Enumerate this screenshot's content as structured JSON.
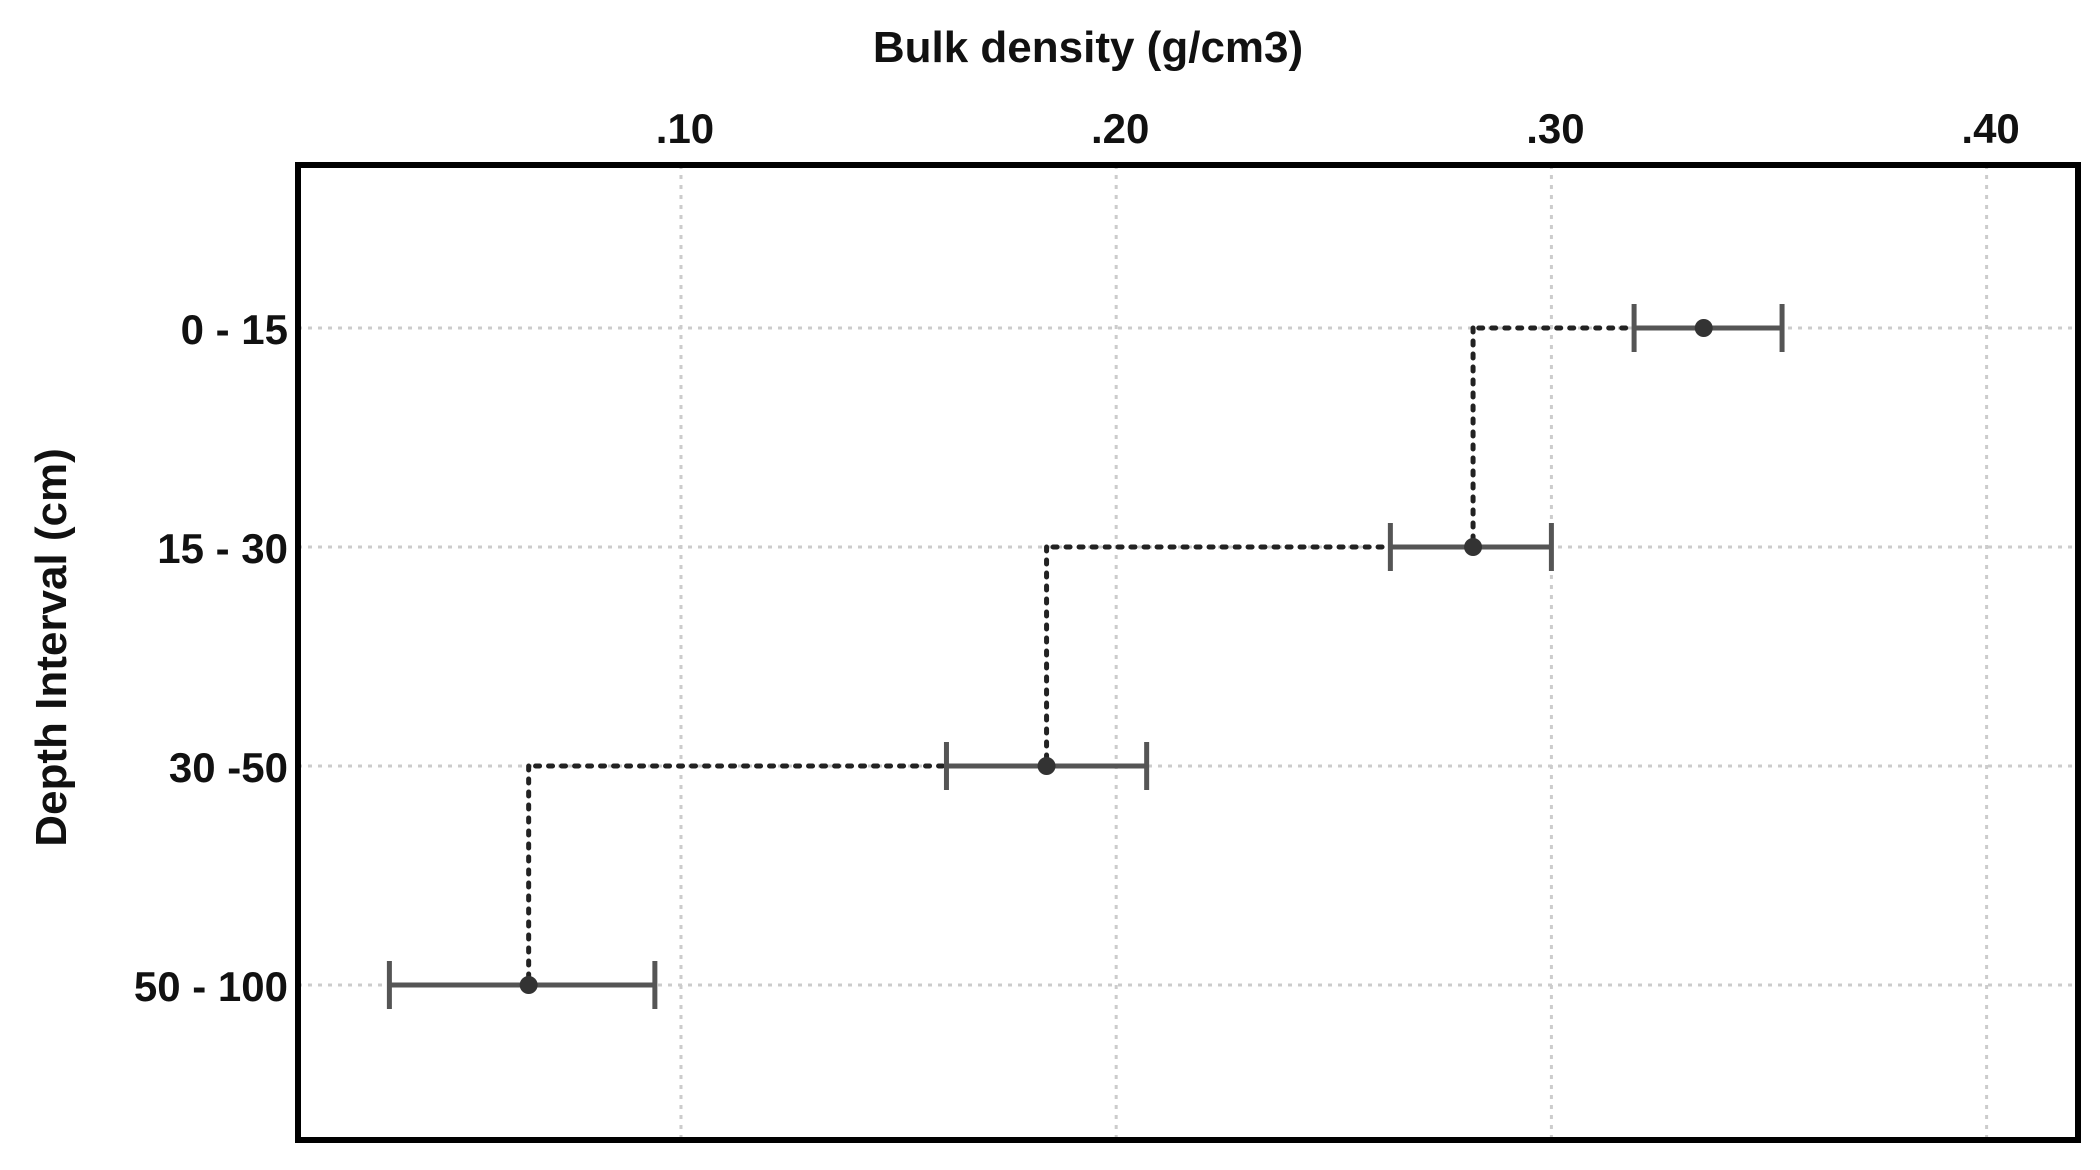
{
  "chart_data": {
    "type": "scatter",
    "title": "",
    "xlabel": "Bulk density (g/cm3)",
    "ylabel": "Depth Interval (cm)",
    "x_axis_position": "top",
    "xlim": [
      0.012,
      0.421
    ],
    "xticks": [
      0.1,
      0.2,
      0.3,
      0.4
    ],
    "xtick_labels": [
      ".10",
      ".20",
      ".30",
      ".40"
    ],
    "categories": [
      "0 - 15",
      "15 - 30",
      "30 -50",
      "50 - 100"
    ],
    "grid": true,
    "grid_style": "dotted",
    "series": [
      {
        "values": [
          0.335,
          0.282,
          0.184,
          0.065
        ],
        "error_low": [
          0.319,
          0.263,
          0.161,
          0.033
        ],
        "error_high": [
          0.353,
          0.3,
          0.207,
          0.094
        ]
      }
    ],
    "step_line": {
      "style": "dotted",
      "connects": "mean values stepwise by depth"
    },
    "colors": {
      "marker": "#333333",
      "errorbar": "#555555",
      "frame": "#000000",
      "grid": "#cccccc",
      "step": "#222222"
    }
  }
}
